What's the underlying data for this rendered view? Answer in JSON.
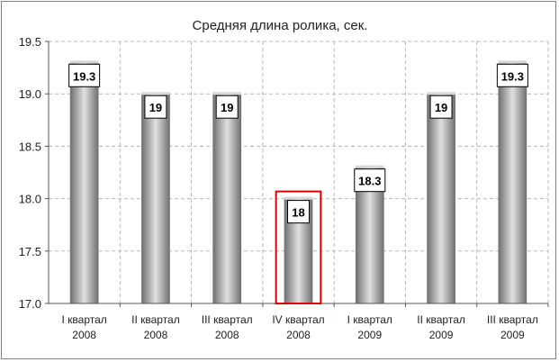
{
  "chart_data": {
    "type": "bar",
    "title": "Средняя длина ролика, сек.",
    "categories": [
      [
        "I квартал",
        "2008"
      ],
      [
        "II квартал",
        "2008"
      ],
      [
        "III квартал",
        "2008"
      ],
      [
        "IV квартал",
        "2008"
      ],
      [
        "I квартал",
        "2009"
      ],
      [
        "II квартал",
        "2009"
      ],
      [
        "III квартал",
        "2009"
      ]
    ],
    "values": [
      19.3,
      19,
      19,
      18,
      18.3,
      19,
      19.3
    ],
    "data_labels": [
      "19.3",
      "19",
      "19",
      "18",
      "18.3",
      "19",
      "19.3"
    ],
    "ylim": [
      17.0,
      19.5
    ],
    "yticks": [
      "17.0",
      "17.5",
      "18.0",
      "18.5",
      "19.0",
      "19.5"
    ],
    "grid": true,
    "legend": "none",
    "highlight_index": 3,
    "colors": {
      "bar_dark": "#6e6e6e",
      "bar_light": "#d8d8d8",
      "grid": "#b8b8b8",
      "highlight": "#e00000",
      "axis": "#555555"
    }
  }
}
